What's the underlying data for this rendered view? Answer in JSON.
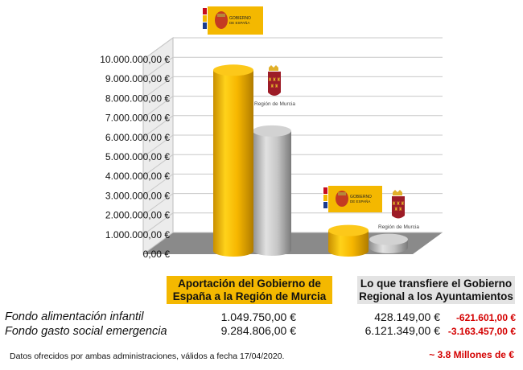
{
  "colors": {
    "gobierno": "#f4b800",
    "region": "#c6c6c6",
    "negative": "#d40000"
  },
  "chart_data": {
    "type": "bar",
    "title": "",
    "xlabel": "",
    "ylabel": "",
    "ylim": [
      0,
      10000000
    ],
    "yticks": [
      "0,00 €",
      "1.000.000,00 €",
      "2.000.000,00 €",
      "3.000.000,00 €",
      "4.000.000,00 €",
      "5.000.000,00 €",
      "6.000.000,00 €",
      "7.000.000,00 €",
      "8.000.000,00 €",
      "9.000.000,00 €",
      "10.000.000,00 €"
    ],
    "categories": [
      "Fondo gasto social emergencia",
      "Fondo alimentación infantil"
    ],
    "series": [
      {
        "name": "Aportación del Gobierno de España a la Región de Murcia",
        "values": [
          9284806,
          1049750
        ]
      },
      {
        "name": "Lo que transfiere el Gobierno Regional a los Ayuntamientos",
        "values": [
          6121349,
          428149
        ]
      }
    ],
    "grid": true,
    "three_d": true
  },
  "logos": {
    "gobierno_text_1": "GOBIERNO",
    "gobierno_text_2": "DE ESPAÑA",
    "region_text": "Región de Murcia"
  },
  "labels": {
    "left_box": "Aportación del Gobierno de España a la Región de Murcia",
    "right_box": "Lo que transfiere el Gobierno Regional a los Ayuntamientos"
  },
  "rows": [
    {
      "label": "Fondo alimentación infantil",
      "aportacion": "1.049.750,00 €",
      "transfiere": "428.149,00 €",
      "difference": "-621.601,00 €"
    },
    {
      "label": "Fondo gasto social emergencia",
      "aportacion": "9.284.806,00 €",
      "transfiere": "6.121.349,00 €",
      "difference": "-3.163.457,00 €"
    }
  ],
  "footnote": "Datos ofrecidos por ambas administraciones, válidos a fecha 17/04/2020.",
  "total": "~ 3.8 Millones de €"
}
